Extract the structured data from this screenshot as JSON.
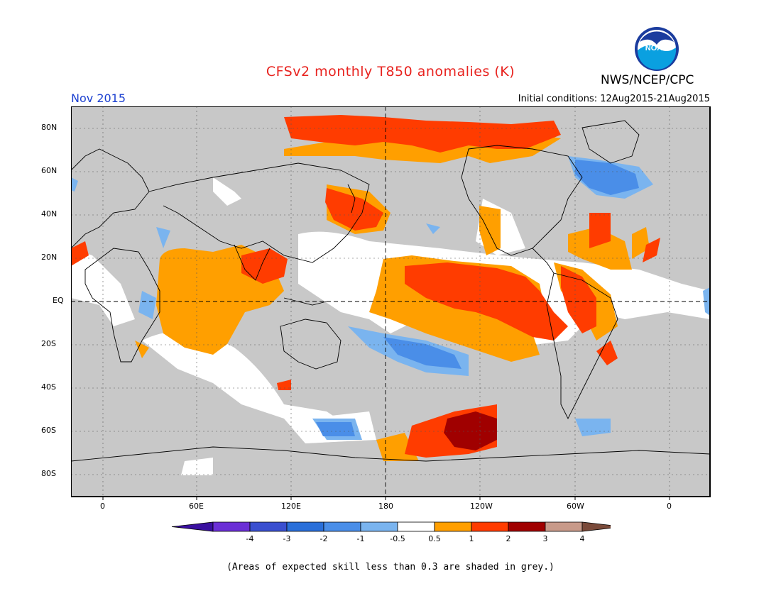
{
  "header": {
    "title": "CFSv2 monthly T850 anomalies (K)",
    "agency": "NWS/NCEP/CPC",
    "logo_text": "NOAA",
    "month": "Nov 2015",
    "initial_conditions": "Initial conditions: 12Aug2015-21Aug2015"
  },
  "map": {
    "lat_labels": [
      "80N",
      "60N",
      "40N",
      "20N",
      "EQ",
      "20S",
      "40S",
      "60S",
      "80S"
    ],
    "lon_labels": [
      "0",
      "60E",
      "120E",
      "180",
      "120W",
      "60W",
      "0"
    ],
    "colors": {
      "skill_grey": "#c8c8c8",
      "near_zero": "#ffffff",
      "pos_0_5_1": "#ff9f00",
      "pos_1_2": "#ff3c00",
      "pos_2_3": "#a00000",
      "neg_0_5_1": "#7ab4ef",
      "neg_1_2": "#4a8ee8"
    }
  },
  "colorbar": {
    "labels": [
      "-4",
      "-3",
      "-2",
      "-1",
      "-0.5",
      "0.5",
      "1",
      "2",
      "3",
      "4"
    ],
    "colors": [
      "#6b2fd6",
      "#3a4fd0",
      "#2a6fd9",
      "#4a8ee8",
      "#7ab4ef",
      "#ffffff",
      "#ff9f00",
      "#ff3c00",
      "#a00000",
      "#c89a8a"
    ],
    "under_color": "#3a10a0",
    "over_color": "#7a4a3a"
  },
  "footnote": "(Areas of expected skill less than 0.3 are shaded in grey.)"
}
